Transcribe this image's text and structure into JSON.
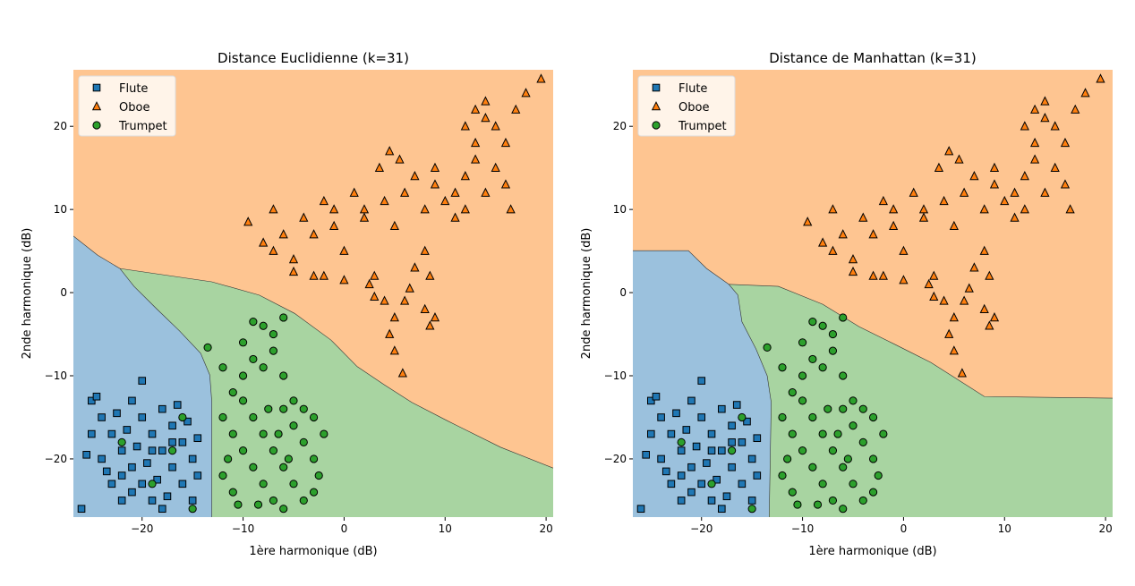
{
  "chart_data": [
    {
      "type": "scatter",
      "title": "Distance Euclidienne (k=31)",
      "xlabel": "1ère harmonique (dB)",
      "ylabel": "2nde harmonique (dB)",
      "xlim": [
        -26.8,
        20.7
      ],
      "ylim": [
        -27,
        26.8
      ],
      "xticks": [
        -20,
        -10,
        0,
        10,
        20
      ],
      "yticks": [
        -20,
        -10,
        0,
        10,
        20
      ],
      "xtick_labels": [
        "−20",
        "−10",
        "0",
        "10",
        "20"
      ],
      "ytick_labels": [
        "−20",
        "−10",
        "0",
        "10",
        "20"
      ],
      "grid": false,
      "legend_placement": "upper-left",
      "regions": {
        "background_class": "Oboe",
        "flute_boundary": [
          [
            -26.8,
            6.8
          ],
          [
            -24.4,
            4.5
          ],
          [
            -22.2,
            2.9
          ],
          [
            -20.8,
            0.75
          ],
          [
            -18.6,
            -1.9
          ],
          [
            -16.3,
            -4.6
          ],
          [
            -14.2,
            -7.3
          ],
          [
            -13.3,
            -9.9
          ],
          [
            -13.1,
            -13.1
          ],
          [
            -13.1,
            -27
          ]
        ],
        "trumpet_oboe_boundary": [
          [
            -22.2,
            2.9
          ],
          [
            -13.1,
            1.3
          ],
          [
            -8.4,
            -0.3
          ],
          [
            -4.9,
            -2.5
          ],
          [
            -1.3,
            -5.7
          ],
          [
            1.3,
            -8.9
          ],
          [
            4,
            -11.1
          ],
          [
            6.7,
            -13.2
          ],
          [
            10.2,
            -15.4
          ],
          [
            15.5,
            -18.6
          ],
          [
            20.7,
            -21.1
          ]
        ]
      }
    },
    {
      "type": "scatter",
      "title": "Distance de Manhattan (k=31)",
      "xlabel": "1ère harmonique (dB)",
      "ylabel": "2nde harmonique (dB)",
      "xlim": [
        -26.8,
        20.7
      ],
      "ylim": [
        -27,
        26.8
      ],
      "xticks": [
        -20,
        -10,
        0,
        10,
        20
      ],
      "yticks": [
        -20,
        -10,
        0,
        10,
        20
      ],
      "xtick_labels": [
        "−20",
        "−10",
        "0",
        "10",
        "20"
      ],
      "ytick_labels": [
        "−20",
        "−10",
        "0",
        "10",
        "20"
      ],
      "grid": false,
      "legend_placement": "upper-left",
      "regions": {
        "background_class": "Oboe",
        "flute_boundary": [
          [
            -26.8,
            5.05
          ],
          [
            -21.3,
            5.05
          ],
          [
            -19.5,
            2.9
          ],
          [
            -17.3,
            1.0
          ],
          [
            -16.4,
            -0.3
          ],
          [
            -16,
            -3.5
          ],
          [
            -14.6,
            -6.8
          ],
          [
            -13.5,
            -10
          ],
          [
            -13.1,
            -13.2
          ],
          [
            -13.3,
            -27
          ]
        ],
        "trumpet_oboe_boundary": [
          [
            -17.3,
            1.0
          ],
          [
            -12.4,
            0.75
          ],
          [
            -8,
            -1.4
          ],
          [
            -4.4,
            -4.1
          ],
          [
            -0.9,
            -6.2
          ],
          [
            2.7,
            -8.4
          ],
          [
            6.2,
            -11.1
          ],
          [
            8,
            -12.5
          ],
          [
            20.7,
            -12.7
          ]
        ]
      }
    }
  ],
  "classes": [
    {
      "name": "Flute",
      "marker": "square",
      "color": "#1f77b4",
      "region_color": "#9bc1dd"
    },
    {
      "name": "Oboe",
      "marker": "triangle",
      "color": "#ff7f0e",
      "region_color": "#fec591"
    },
    {
      "name": "Trumpet",
      "marker": "circle",
      "color": "#2ca02c",
      "region_color": "#a8d4a1"
    }
  ],
  "points": {
    "Flute": [
      [
        -25,
        -13
      ],
      [
        -24,
        -15
      ],
      [
        -23,
        -17
      ],
      [
        -22,
        -19
      ],
      [
        -21,
        -21
      ],
      [
        -20,
        -23
      ],
      [
        -19,
        -25
      ],
      [
        -18,
        -14
      ],
      [
        -17,
        -16
      ],
      [
        -16,
        -18
      ],
      [
        -15,
        -20
      ],
      [
        -14.5,
        -22
      ],
      [
        -24,
        -20
      ],
      [
        -25,
        -17
      ],
      [
        -23,
        -23
      ],
      [
        -22,
        -25
      ],
      [
        -21,
        -13
      ],
      [
        -20,
        -15
      ],
      [
        -19,
        -17
      ],
      [
        -18,
        -19
      ],
      [
        -17,
        -21
      ],
      [
        -16,
        -23
      ],
      [
        -15,
        -25
      ],
      [
        -20,
        -10.6
      ],
      [
        -26,
        -26
      ],
      [
        -24.5,
        -12.5
      ],
      [
        -22.5,
        -14.5
      ],
      [
        -21.5,
        -16.5
      ],
      [
        -20.5,
        -18.5
      ],
      [
        -19.5,
        -20.5
      ],
      [
        -18.5,
        -22.5
      ],
      [
        -17.5,
        -24.5
      ],
      [
        -16.5,
        -13.5
      ],
      [
        -15.5,
        -15.5
      ],
      [
        -14.5,
        -17.5
      ],
      [
        -23.5,
        -21.5
      ],
      [
        -22,
        -22
      ],
      [
        -19,
        -19
      ],
      [
        -17,
        -18
      ],
      [
        -21,
        -24
      ],
      [
        -25.5,
        -19.5
      ],
      [
        -18,
        -26
      ]
    ],
    "Oboe": [
      [
        -9.5,
        8.5
      ],
      [
        -8,
        6
      ],
      [
        -7,
        10
      ],
      [
        -6,
        7
      ],
      [
        -5,
        4
      ],
      [
        -4,
        9
      ],
      [
        -3,
        2
      ],
      [
        -2,
        11
      ],
      [
        -1,
        8
      ],
      [
        0,
        5
      ],
      [
        1,
        12
      ],
      [
        2,
        9
      ],
      [
        3,
        2
      ],
      [
        4,
        11
      ],
      [
        5,
        8
      ],
      [
        4.5,
        17
      ],
      [
        5.5,
        16
      ],
      [
        3.5,
        15
      ],
      [
        6,
        12
      ],
      [
        7,
        14
      ],
      [
        8,
        10
      ],
      [
        9,
        13
      ],
      [
        10,
        11
      ],
      [
        11,
        12
      ],
      [
        12,
        14
      ],
      [
        13,
        18
      ],
      [
        14,
        21
      ],
      [
        15,
        20
      ],
      [
        16,
        18
      ],
      [
        13,
        16
      ],
      [
        14,
        12
      ],
      [
        15,
        15
      ],
      [
        12,
        10
      ],
      [
        17,
        22
      ],
      [
        18,
        24
      ],
      [
        19.5,
        25.7
      ],
      [
        16,
        13
      ],
      [
        16.5,
        10
      ],
      [
        9,
        15
      ],
      [
        8,
        5
      ],
      [
        8.5,
        2
      ],
      [
        8,
        -2
      ],
      [
        9,
        -3
      ],
      [
        8.5,
        -4
      ],
      [
        7,
        3
      ],
      [
        6.5,
        0.5
      ],
      [
        4,
        -1
      ],
      [
        5,
        -3
      ],
      [
        4.5,
        -5
      ],
      [
        5,
        -7
      ],
      [
        6,
        -1
      ],
      [
        5.8,
        -9.7
      ],
      [
        3,
        -0.5
      ],
      [
        2.5,
        1
      ],
      [
        0,
        1.5
      ],
      [
        -2,
        2
      ],
      [
        -5,
        2.5
      ],
      [
        -7,
        5
      ],
      [
        -1,
        10
      ],
      [
        2,
        10
      ],
      [
        -3,
        7
      ],
      [
        11,
        9
      ],
      [
        13,
        22
      ],
      [
        14,
        23
      ],
      [
        12,
        20
      ]
    ],
    "Trumpet": [
      [
        -12,
        -15
      ],
      [
        -11,
        -17
      ],
      [
        -10,
        -19
      ],
      [
        -9,
        -21
      ],
      [
        -8,
        -23
      ],
      [
        -7,
        -25
      ],
      [
        -6,
        -14
      ],
      [
        -5,
        -16
      ],
      [
        -4,
        -18
      ],
      [
        -3,
        -20
      ],
      [
        -2.5,
        -22
      ],
      [
        -3,
        -15
      ],
      [
        -12,
        -22
      ],
      [
        -11,
        -24
      ],
      [
        -10,
        -13
      ],
      [
        -9,
        -15
      ],
      [
        -8,
        -17
      ],
      [
        -7,
        -19
      ],
      [
        -6,
        -21
      ],
      [
        -5,
        -23
      ],
      [
        -4,
        -25
      ],
      [
        -6,
        -26
      ],
      [
        -8,
        -4
      ],
      [
        -9,
        -3.5
      ],
      [
        -7,
        -5
      ],
      [
        -6,
        -3
      ],
      [
        -10,
        -6
      ],
      [
        -9,
        -8
      ],
      [
        -8,
        -9
      ],
      [
        -7,
        -7
      ],
      [
        -6,
        -10
      ],
      [
        -10,
        -10
      ],
      [
        -11,
        -12
      ],
      [
        -12,
        -9
      ],
      [
        -13.5,
        -6.6
      ],
      [
        -5,
        -13
      ],
      [
        -4,
        -14
      ],
      [
        -2,
        -17
      ],
      [
        -3,
        -24
      ],
      [
        -11.5,
        -20
      ],
      [
        -7.5,
        -14
      ],
      [
        -6.5,
        -17
      ],
      [
        -5.5,
        -20
      ],
      [
        -8.5,
        -25.5
      ],
      [
        -17,
        -19
      ],
      [
        -19,
        -23
      ],
      [
        -22,
        -18
      ],
      [
        -16,
        -15
      ],
      [
        -15,
        -26
      ],
      [
        -10.5,
        -25.5
      ]
    ]
  }
}
